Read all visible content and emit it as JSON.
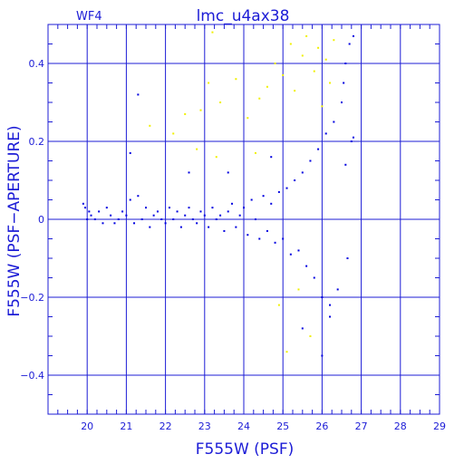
{
  "chart_data": {
    "type": "scatter",
    "title": "lmc_u4ax38",
    "panel_label": "WF4",
    "xlabel": "F555W (PSF)",
    "ylabel": "F555W (PSF−APERTURE)",
    "xlim": [
      19,
      29
    ],
    "ylim": [
      -0.5,
      0.5
    ],
    "xticks": [
      20,
      21,
      22,
      23,
      24,
      25,
      26,
      27,
      28,
      29
    ],
    "xtick_labels": [
      "20",
      "21",
      "22",
      "23",
      "24",
      "25",
      "26",
      "27",
      "28",
      "29"
    ],
    "yticks": [
      -0.4,
      -0.2,
      0,
      0.2,
      0.4
    ],
    "ytick_labels": [
      "−0.4",
      "−0.2",
      "0",
      "0.2",
      "0.4"
    ],
    "grid": true,
    "colors": {
      "frame": "#1c1cd6",
      "main_points": "#0000e0",
      "rejected_points": "#f0f000"
    },
    "series": [
      {
        "color": "#0000e0",
        "points": [
          [
            19.9,
            0.04
          ],
          [
            19.95,
            0.03
          ],
          [
            20.0,
            0.0
          ],
          [
            20.05,
            0.02
          ],
          [
            20.1,
            0.01
          ],
          [
            20.2,
            0.0
          ],
          [
            20.3,
            0.02
          ],
          [
            20.4,
            -0.01
          ],
          [
            20.5,
            0.03
          ],
          [
            20.6,
            0.01
          ],
          [
            20.7,
            -0.01
          ],
          [
            20.8,
            0.0
          ],
          [
            20.9,
            0.02
          ],
          [
            21.0,
            0.01
          ],
          [
            21.1,
            0.05
          ],
          [
            21.2,
            -0.01
          ],
          [
            21.3,
            0.06
          ],
          [
            21.4,
            0.0
          ],
          [
            21.5,
            0.03
          ],
          [
            21.6,
            -0.02
          ],
          [
            21.7,
            0.01
          ],
          [
            21.8,
            0.02
          ],
          [
            21.9,
            0.0
          ],
          [
            22.0,
            -0.01
          ],
          [
            22.1,
            0.03
          ],
          [
            22.2,
            0.0
          ],
          [
            22.3,
            0.02
          ],
          [
            22.4,
            -0.02
          ],
          [
            22.5,
            0.01
          ],
          [
            22.6,
            0.03
          ],
          [
            22.7,
            0.0
          ],
          [
            22.8,
            -0.01
          ],
          [
            22.9,
            0.02
          ],
          [
            23.0,
            0.01
          ],
          [
            23.1,
            -0.02
          ],
          [
            23.2,
            0.03
          ],
          [
            23.3,
            0.0
          ],
          [
            23.4,
            0.01
          ],
          [
            23.5,
            -0.03
          ],
          [
            23.6,
            0.02
          ],
          [
            23.7,
            0.04
          ],
          [
            23.8,
            -0.02
          ],
          [
            23.9,
            0.01
          ],
          [
            24.0,
            0.03
          ],
          [
            24.1,
            -0.04
          ],
          [
            24.2,
            0.05
          ],
          [
            24.3,
            0.0
          ],
          [
            24.4,
            -0.05
          ],
          [
            24.5,
            0.06
          ],
          [
            24.6,
            -0.03
          ],
          [
            24.7,
            0.04
          ],
          [
            24.8,
            -0.06
          ],
          [
            24.9,
            0.07
          ],
          [
            25.0,
            -0.05
          ],
          [
            25.1,
            0.08
          ],
          [
            25.2,
            -0.09
          ],
          [
            25.3,
            0.1
          ],
          [
            25.4,
            -0.08
          ],
          [
            25.5,
            0.12
          ],
          [
            25.6,
            -0.12
          ],
          [
            25.7,
            0.15
          ],
          [
            25.8,
            -0.15
          ],
          [
            25.9,
            0.18
          ],
          [
            26.0,
            -0.2
          ],
          [
            26.1,
            0.22
          ],
          [
            26.2,
            -0.22
          ],
          [
            26.3,
            0.25
          ],
          [
            26.4,
            -0.18
          ],
          [
            26.5,
            0.3
          ],
          [
            26.55,
            0.35
          ],
          [
            26.6,
            0.4
          ],
          [
            26.65,
            -0.1
          ],
          [
            26.7,
            0.45
          ],
          [
            26.75,
            0.2
          ],
          [
            26.8,
            0.47
          ],
          [
            21.1,
            0.17
          ],
          [
            21.3,
            0.32
          ],
          [
            22.6,
            0.12
          ],
          [
            23.6,
            0.12
          ],
          [
            24.7,
            0.16
          ],
          [
            25.5,
            -0.28
          ],
          [
            26.0,
            -0.35
          ],
          [
            26.2,
            -0.25
          ],
          [
            26.6,
            0.14
          ],
          [
            26.8,
            0.21
          ]
        ]
      },
      {
        "color": "#f0f000",
        "points": [
          [
            21.6,
            0.24
          ],
          [
            22.2,
            0.22
          ],
          [
            22.5,
            0.27
          ],
          [
            22.9,
            0.28
          ],
          [
            23.1,
            0.35
          ],
          [
            23.2,
            0.48
          ],
          [
            23.4,
            0.3
          ],
          [
            23.8,
            0.36
          ],
          [
            24.1,
            0.26
          ],
          [
            24.4,
            0.31
          ],
          [
            24.6,
            0.34
          ],
          [
            24.8,
            0.4
          ],
          [
            25.0,
            0.37
          ],
          [
            25.2,
            0.45
          ],
          [
            25.3,
            0.33
          ],
          [
            25.5,
            0.42
          ],
          [
            25.6,
            0.47
          ],
          [
            25.8,
            0.38
          ],
          [
            25.9,
            0.44
          ],
          [
            26.0,
            0.29
          ],
          [
            26.1,
            0.41
          ],
          [
            26.2,
            0.35
          ],
          [
            24.9,
            -0.22
          ],
          [
            25.1,
            -0.34
          ],
          [
            25.4,
            -0.18
          ],
          [
            25.7,
            -0.3
          ],
          [
            26.3,
            0.46
          ],
          [
            24.3,
            0.17
          ],
          [
            23.3,
            0.16
          ],
          [
            22.8,
            0.18
          ]
        ]
      }
    ]
  }
}
